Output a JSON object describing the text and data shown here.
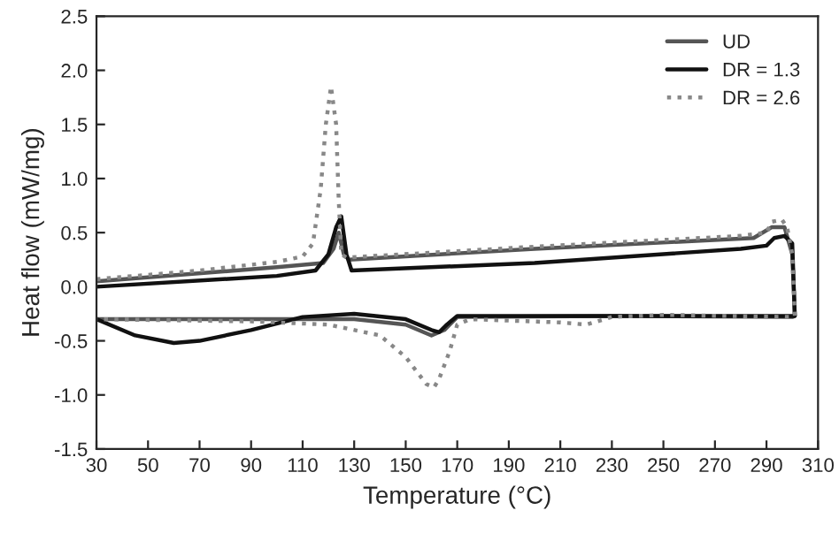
{
  "chart_data": {
    "type": "line",
    "xlabel": "Temperature (°C)",
    "ylabel": "Heat flow (mW/mg)",
    "xlim": [
      30,
      310
    ],
    "xticks": [
      30,
      50,
      70,
      90,
      110,
      130,
      150,
      170,
      190,
      210,
      230,
      250,
      270,
      290,
      310
    ],
    "ylim": [
      -1.5,
      2.5
    ],
    "yticks": [
      {
        "value": -1.5,
        "label": "-1.5"
      },
      {
        "value": -1,
        "label": "-1.0"
      },
      {
        "value": -0.5,
        "label": "-0.5"
      },
      {
        "value": 0,
        "label": "0.0"
      },
      {
        "value": 0.5,
        "label": "0.5"
      },
      {
        "value": 1,
        "label": "1.0"
      },
      {
        "value": 1.5,
        "label": "1.5"
      },
      {
        "value": 2,
        "label": "2.0"
      },
      {
        "value": 2.5,
        "label": "2.5"
      }
    ],
    "grid": false,
    "legend": "top right",
    "marker": "none",
    "series": [
      {
        "name": "UD",
        "color": "#555555",
        "line_style": "solid",
        "x": [
          30,
          100,
          118,
          122,
          124,
          126,
          128,
          200,
          285,
          292,
          297,
          300,
          301,
          300,
          230,
          170,
          165,
          160,
          150,
          130,
          100,
          30
        ],
        "values": [
          0.05,
          0.18,
          0.22,
          0.35,
          0.5,
          0.3,
          0.25,
          0.35,
          0.45,
          0.55,
          0.55,
          0.3,
          -0.27,
          -0.28,
          -0.27,
          -0.28,
          -0.4,
          -0.45,
          -0.35,
          -0.3,
          -0.3,
          -0.3
        ]
      },
      {
        "name": "DR = 1.3",
        "color": "#111111",
        "line_style": "solid",
        "x": [
          30,
          100,
          115,
          120,
          123,
          125,
          127,
          129,
          200,
          280,
          290,
          293,
          297,
          300,
          301,
          300,
          200,
          170,
          166,
          163,
          160,
          150,
          130,
          110,
          90,
          70,
          60,
          45,
          30
        ],
        "values": [
          0.0,
          0.1,
          0.15,
          0.3,
          0.55,
          0.65,
          0.3,
          0.15,
          0.22,
          0.35,
          0.38,
          0.45,
          0.47,
          0.4,
          -0.27,
          -0.27,
          -0.27,
          -0.27,
          -0.35,
          -0.42,
          -0.4,
          -0.3,
          -0.25,
          -0.28,
          -0.4,
          -0.5,
          -0.52,
          -0.45,
          -0.3
        ]
      },
      {
        "name": "DR = 2.6",
        "color": "#888888",
        "line_style": "dotted",
        "x": [
          30,
          70,
          100,
          110,
          114,
          117,
          119,
          121,
          123,
          124,
          125,
          127,
          200,
          280,
          290,
          292,
          296,
          298,
          300,
          301,
          300,
          250,
          230,
          220,
          210,
          175,
          170,
          167,
          163,
          161,
          158,
          150,
          140,
          120,
          90,
          30
        ],
        "values": [
          0.07,
          0.15,
          0.23,
          0.28,
          0.4,
          0.9,
          1.5,
          1.85,
          1.5,
          0.8,
          0.3,
          0.27,
          0.37,
          0.47,
          0.5,
          0.6,
          0.62,
          0.55,
          0.3,
          -0.27,
          -0.28,
          -0.26,
          -0.28,
          -0.35,
          -0.33,
          -0.3,
          -0.35,
          -0.6,
          -0.85,
          -0.93,
          -0.9,
          -0.65,
          -0.45,
          -0.35,
          -0.32,
          -0.3
        ]
      }
    ]
  }
}
